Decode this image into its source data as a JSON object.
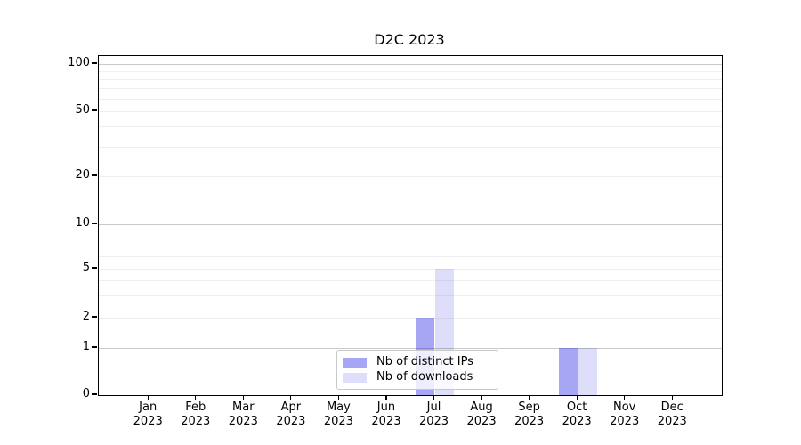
{
  "chart_data": {
    "type": "bar",
    "title": "D2C 2023",
    "categories": [
      "Jan",
      "Feb",
      "Mar",
      "Apr",
      "May",
      "Jun",
      "Jul",
      "Aug",
      "Sep",
      "Oct",
      "Nov",
      "Dec"
    ],
    "category_year": "2023",
    "series": [
      {
        "name": "Nb of distinct IPs",
        "key": "distinct-ips",
        "color": "rgba(20,20,230,0.38)",
        "values": [
          0,
          0,
          0,
          0,
          0,
          0,
          2,
          0,
          0,
          1,
          0,
          0
        ]
      },
      {
        "name": "Nb of downloads",
        "key": "downloads",
        "color": "rgba(20,20,230,0.14)",
        "values": [
          0,
          0,
          0,
          0,
          0,
          0,
          5,
          0,
          0,
          1,
          0,
          0
        ]
      }
    ],
    "yticks": [
      0,
      1,
      2,
      5,
      10,
      20,
      50,
      100
    ],
    "ylim": [
      0,
      112
    ],
    "scale": "symlog",
    "grid": {
      "orientation": "horizontal",
      "major_color": "#c9c9c9",
      "minor_color": "#efefef"
    },
    "legend": {
      "position": "lower center"
    }
  }
}
